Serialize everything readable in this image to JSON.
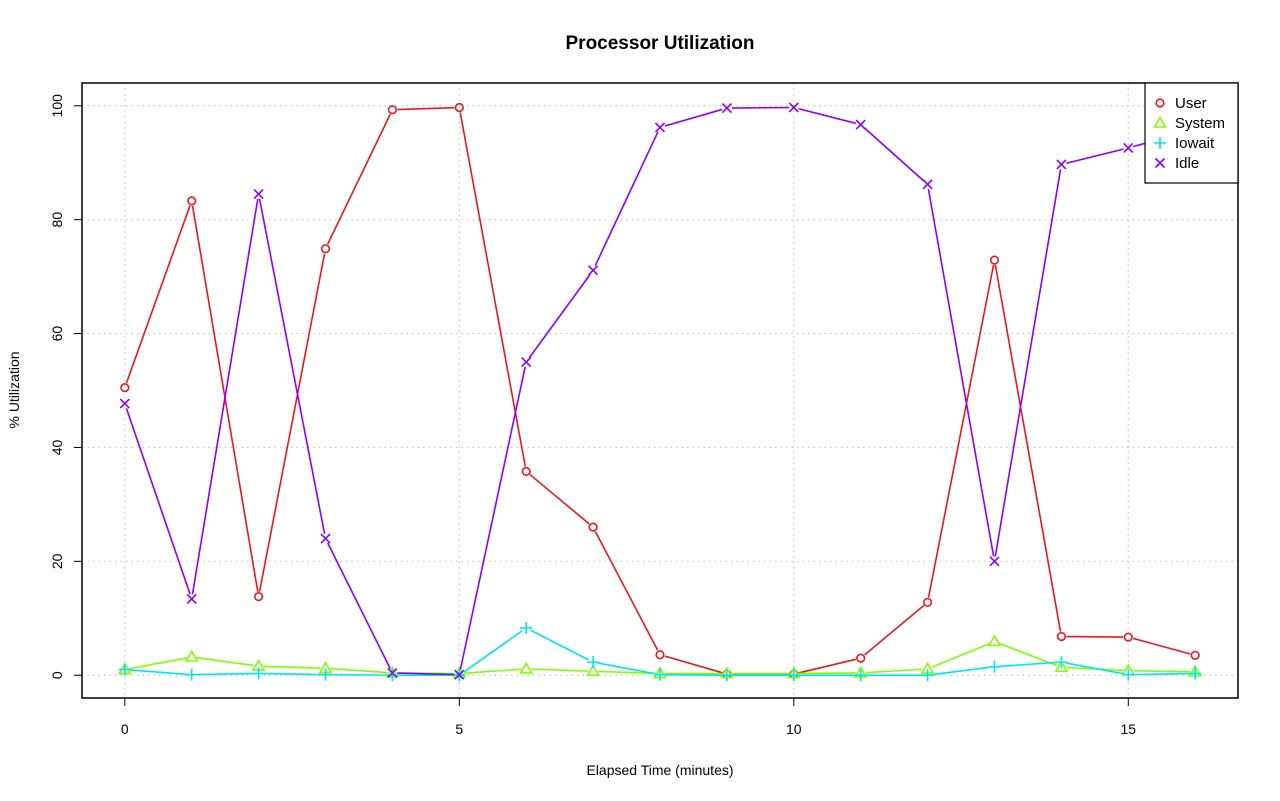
{
  "chart_data": {
    "type": "line",
    "title": "Processor Utilization",
    "xlabel": "Elapsed Time (minutes)",
    "ylabel": "% Utilization",
    "xlim": [
      -0.64,
      16.64
    ],
    "ylim": [
      -4,
      104
    ],
    "x_ticks": [
      0,
      5,
      10,
      15
    ],
    "y_ticks": [
      0,
      20,
      40,
      60,
      80,
      100
    ],
    "grid": true,
    "legend_position": "top-right",
    "x": [
      0,
      1,
      2,
      3,
      4,
      5,
      6,
      7,
      8,
      9,
      10,
      11,
      12,
      13,
      14,
      15,
      16
    ],
    "series": [
      {
        "name": "User",
        "color": "#e41a1c",
        "marker": "circle",
        "values": [
          50.5,
          83.3,
          13.8,
          74.9,
          99.3,
          99.7,
          35.8,
          26.0,
          3.6,
          0.2,
          0.2,
          3.0,
          12.8,
          72.9,
          6.8,
          6.7,
          3.5
        ]
      },
      {
        "name": "System",
        "color": "#7fff00",
        "marker": "triangle",
        "values": [
          1.0,
          3.2,
          1.6,
          1.2,
          0.4,
          0.3,
          1.1,
          0.7,
          0.3,
          0.3,
          0.3,
          0.4,
          1.1,
          5.9,
          1.4,
          0.8,
          0.6
        ]
      },
      {
        "name": "Iowait",
        "color": "#00e5ee",
        "marker": "plus",
        "values": [
          1.0,
          0.1,
          0.3,
          0.1,
          0.0,
          0.0,
          8.3,
          2.3,
          0.1,
          0.0,
          0.0,
          0.0,
          0.0,
          1.5,
          2.3,
          0.1,
          0.3
        ]
      },
      {
        "name": "Idle",
        "color": "#8b00ff",
        "marker": "cross",
        "values": [
          47.7,
          13.4,
          84.5,
          24.0,
          0.4,
          0.1,
          55.0,
          71.1,
          96.2,
          99.6,
          99.7,
          96.7,
          86.2,
          20.0,
          89.7,
          92.6,
          95.8
        ]
      }
    ]
  }
}
